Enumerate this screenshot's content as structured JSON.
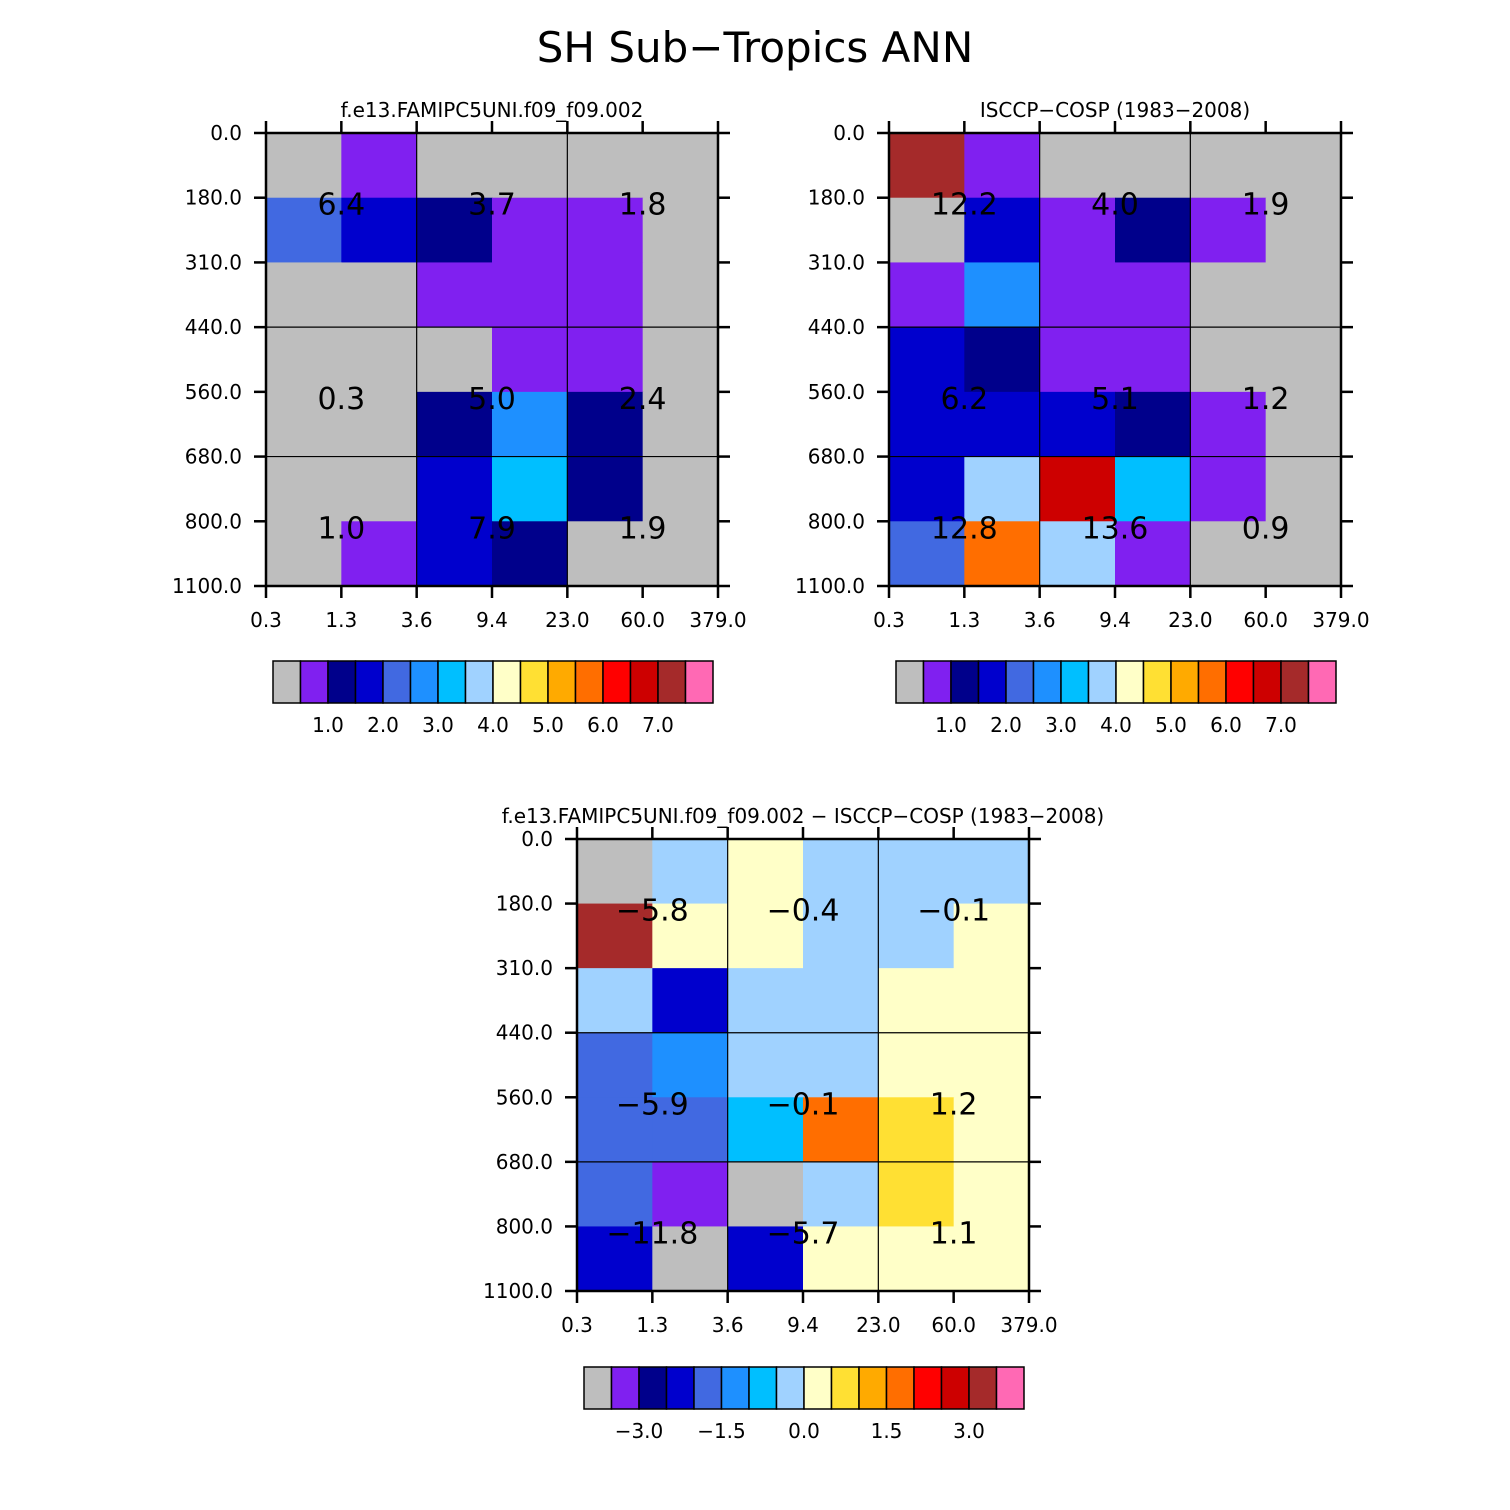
{
  "title": "SH Sub−Tropics ANN",
  "chart_data": [
    {
      "type": "heatmap",
      "subtitle": "f.e13.FAMIPC5UNI.f09_f09.002",
      "x_ticks": [
        "0.3",
        "1.3",
        "3.6",
        "9.4",
        "23.0",
        "60.0",
        "379.0"
      ],
      "y_ticks": [
        "0.0",
        "180.0",
        "310.0",
        "440.0",
        "560.0",
        "680.0",
        "800.0",
        "1100.0"
      ],
      "cells": [
        [
          0,
          1,
          0,
          0,
          0,
          0
        ],
        [
          4,
          3,
          2,
          1,
          1,
          0
        ],
        [
          0,
          0,
          1,
          1,
          1,
          0
        ],
        [
          0,
          0,
          0,
          1,
          1,
          0
        ],
        [
          0,
          0,
          2,
          5,
          2,
          0
        ],
        [
          0,
          0,
          3,
          6,
          2,
          0
        ],
        [
          0,
          1,
          3,
          2,
          0,
          0
        ]
      ],
      "totals": [
        {
          "text": "6.4",
          "row": 1,
          "col": 1
        },
        {
          "text": "3.7",
          "row": 1,
          "col": 3
        },
        {
          "text": "1.8",
          "row": 1,
          "col": 5
        },
        {
          "text": "0.3",
          "row": 4,
          "col": 1
        },
        {
          "text": "5.0",
          "row": 4,
          "col": 3
        },
        {
          "text": "2.4",
          "row": 4,
          "col": 5
        },
        {
          "text": "1.0",
          "row": 6,
          "col": 1
        },
        {
          "text": "7.9",
          "row": 6,
          "col": 3
        },
        {
          "text": "1.9",
          "row": 6,
          "col": 5
        }
      ],
      "colorbar_labels": [
        "1.0",
        "2.0",
        "3.0",
        "4.0",
        "5.0",
        "6.0",
        "7.0"
      ]
    },
    {
      "type": "heatmap",
      "subtitle": "ISCCP−COSP (1983−2008)",
      "x_ticks": [
        "0.3",
        "1.3",
        "3.6",
        "9.4",
        "23.0",
        "60.0",
        "379.0"
      ],
      "y_ticks": [
        "0.0",
        "180.0",
        "310.0",
        "440.0",
        "560.0",
        "680.0",
        "800.0",
        "1100.0"
      ],
      "cells": [
        [
          14,
          1,
          0,
          0,
          0,
          0
        ],
        [
          0,
          3,
          1,
          2,
          1,
          0
        ],
        [
          1,
          5,
          1,
          1,
          0,
          0
        ],
        [
          3,
          2,
          1,
          1,
          0,
          0
        ],
        [
          3,
          3,
          3,
          2,
          1,
          0
        ],
        [
          3,
          7,
          13,
          6,
          1,
          0
        ],
        [
          4,
          11,
          7,
          1,
          0,
          0
        ]
      ],
      "totals": [
        {
          "text": "12.2",
          "row": 1,
          "col": 1
        },
        {
          "text": "4.0",
          "row": 1,
          "col": 3
        },
        {
          "text": "1.9",
          "row": 1,
          "col": 5
        },
        {
          "text": "6.2",
          "row": 4,
          "col": 1
        },
        {
          "text": "5.1",
          "row": 4,
          "col": 3
        },
        {
          "text": "1.2",
          "row": 4,
          "col": 5
        },
        {
          "text": "12.8",
          "row": 6,
          "col": 1
        },
        {
          "text": "13.6",
          "row": 6,
          "col": 3
        },
        {
          "text": "0.9",
          "row": 6,
          "col": 5
        }
      ],
      "colorbar_labels": [
        "1.0",
        "2.0",
        "3.0",
        "4.0",
        "5.0",
        "6.0",
        "7.0"
      ]
    },
    {
      "type": "heatmap",
      "subtitle": "f.e13.FAMIPC5UNI.f09_f09.002 − ISCCP−COSP (1983−2008)",
      "x_ticks": [
        "0.3",
        "1.3",
        "3.6",
        "9.4",
        "23.0",
        "60.0",
        "379.0"
      ],
      "y_ticks": [
        "0.0",
        "180.0",
        "310.0",
        "440.0",
        "560.0",
        "680.0",
        "800.0",
        "1100.0"
      ],
      "cells": [
        [
          0,
          7,
          8,
          7,
          7,
          7
        ],
        [
          14,
          8,
          8,
          7,
          7,
          8
        ],
        [
          7,
          3,
          7,
          7,
          8,
          8
        ],
        [
          4,
          5,
          7,
          7,
          8,
          8
        ],
        [
          4,
          4,
          6,
          11,
          9,
          8
        ],
        [
          4,
          1,
          0,
          7,
          9,
          8
        ],
        [
          3,
          0,
          3,
          8,
          8,
          8
        ]
      ],
      "totals": [
        {
          "text": "−5.8",
          "row": 1,
          "col": 1
        },
        {
          "text": "−0.4",
          "row": 1,
          "col": 3
        },
        {
          "text": "−0.1",
          "row": 1,
          "col": 5
        },
        {
          "text": "−5.9",
          "row": 4,
          "col": 1
        },
        {
          "text": "−0.1",
          "row": 4,
          "col": 3
        },
        {
          "text": "1.2",
          "row": 4,
          "col": 5
        },
        {
          "text": "−11.8",
          "row": 6,
          "col": 1
        },
        {
          "text": "−5.7",
          "row": 6,
          "col": 3
        },
        {
          "text": "1.1",
          "row": 6,
          "col": 5
        }
      ],
      "colorbar_labels": [
        "−3.0",
        "−1.5",
        "0.0",
        "1.5",
        "3.0"
      ]
    }
  ],
  "palette": [
    "#bebebe",
    "#8020f0",
    "#00008b",
    "#0000cd",
    "#4169e1",
    "#1e90ff",
    "#00bfff",
    "#a0d2ff",
    "#ffffc8",
    "#ffe033",
    "#ffaa00",
    "#ff6e00",
    "#ff0000",
    "#cd0000",
    "#a52a2a",
    "#ff69b4"
  ]
}
